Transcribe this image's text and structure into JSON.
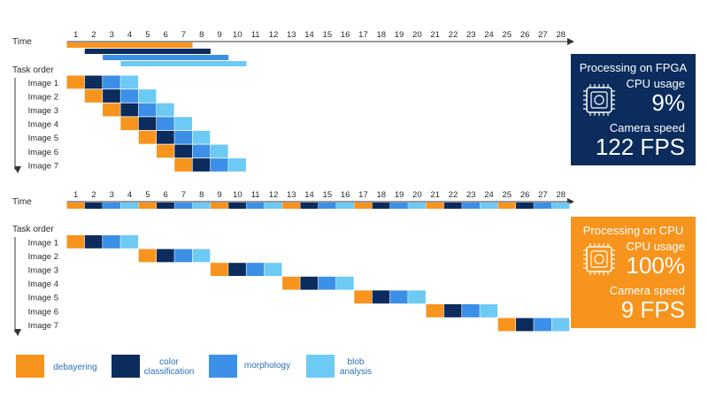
{
  "colors": {
    "debayering": "#f7941d",
    "color_classification": "#0b2c5c",
    "morphology": "#3c8fe6",
    "blob_analysis": "#6ccaf5",
    "fpga_box": "#0b2c5c",
    "cpu_box": "#f7941d"
  },
  "time_label": "Time",
  "task_order_label": "Task order",
  "time_ticks": [
    "1",
    "2",
    "3",
    "4",
    "5",
    "6",
    "7",
    "8",
    "9",
    "10",
    "11",
    "12",
    "13",
    "14",
    "15",
    "16",
    "17",
    "18",
    "19",
    "20",
    "21",
    "22",
    "23",
    "24",
    "25",
    "26",
    "27",
    "28"
  ],
  "images": [
    "Image 1",
    "Image 2",
    "Image 3",
    "Image 4",
    "Image 5",
    "Image 6",
    "Image 7"
  ],
  "fpga": {
    "box_title": "Processing on FPGA",
    "cpu_usage_label": "CPU usage",
    "cpu_usage_value": "9%",
    "camera_speed_label": "Camera speed",
    "camera_speed_value": "122 FPS",
    "image_start_slots": [
      1,
      2,
      3,
      4,
      5,
      6,
      7
    ]
  },
  "cpu": {
    "box_title": "Processing on CPU",
    "cpu_usage_label": "CPU usage",
    "cpu_usage_value": "100%",
    "camera_speed_label": "Camera speed",
    "camera_speed_value": "9 FPS",
    "image_start_slots": [
      1,
      5,
      9,
      13,
      17,
      21,
      25
    ]
  },
  "legend": [
    {
      "key": "debayering",
      "label": "debayering"
    },
    {
      "key": "color_classification",
      "label": "color\nclassification"
    },
    {
      "key": "morphology",
      "label": "morphology"
    },
    {
      "key": "blob_analysis",
      "label": "blob\nanalysis"
    }
  ],
  "chip_icon": "chip-icon"
}
